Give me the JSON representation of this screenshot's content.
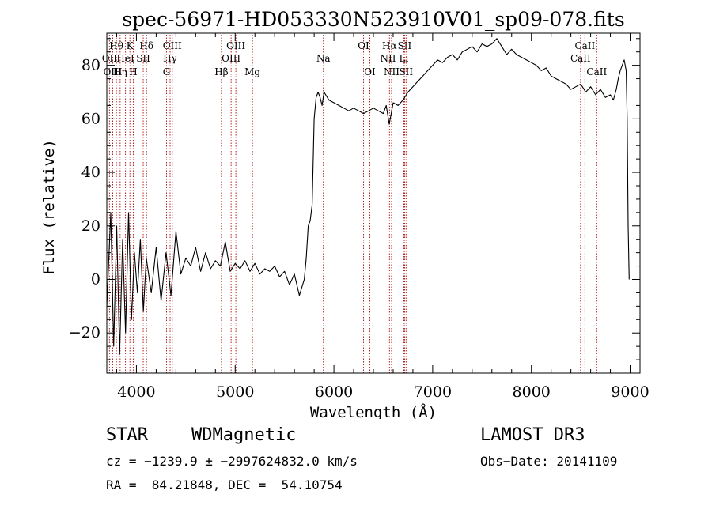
{
  "chart_data": {
    "type": "line",
    "title": "spec-56971-HD053330N523910V01_sp09-078.fits",
    "xlabel": "Wavelength (Å)",
    "ylabel": "Flux (relative)",
    "xlim": [
      3700,
      9100
    ],
    "ylim": [
      -35,
      92
    ],
    "xticks": [
      4000,
      5000,
      6000,
      7000,
      8000,
      9000
    ],
    "yticks": [
      -20,
      0,
      20,
      40,
      60,
      80
    ],
    "grid": false,
    "series": [
      {
        "color": "#000000",
        "x": [
          3700,
          3740,
          3770,
          3800,
          3830,
          3860,
          3890,
          3920,
          3950,
          3980,
          4010,
          4040,
          4070,
          4100,
          4150,
          4200,
          4250,
          4300,
          4350,
          4400,
          4450,
          4500,
          4550,
          4600,
          4650,
          4700,
          4750,
          4800,
          4850,
          4900,
          4950,
          5000,
          5050,
          5100,
          5150,
          5200,
          5250,
          5300,
          5350,
          5400,
          5450,
          5500,
          5550,
          5600,
          5650,
          5700,
          5720,
          5740,
          5760,
          5780,
          5800,
          5820,
          5840,
          5860,
          5880,
          5900,
          5950,
          6000,
          6050,
          6100,
          6150,
          6200,
          6250,
          6300,
          6350,
          6400,
          6450,
          6500,
          6530,
          6560,
          6600,
          6650,
          6700,
          6750,
          6800,
          6850,
          6900,
          6950,
          7000,
          7050,
          7100,
          7150,
          7200,
          7250,
          7300,
          7350,
          7400,
          7450,
          7500,
          7550,
          7600,
          7650,
          7700,
          7750,
          7800,
          7850,
          7900,
          7950,
          8000,
          8050,
          8100,
          8150,
          8200,
          8250,
          8300,
          8350,
          8400,
          8450,
          8500,
          8550,
          8600,
          8650,
          8700,
          8750,
          8800,
          8830,
          8860,
          8880,
          8900,
          8920,
          8940,
          8960,
          8970,
          8980,
          8990
        ],
        "y": [
          -10,
          25,
          -25,
          20,
          -28,
          15,
          -20,
          25,
          -15,
          10,
          -5,
          15,
          -12,
          8,
          -5,
          12,
          -8,
          10,
          -6,
          18,
          2,
          8,
          5,
          12,
          3,
          10,
          4,
          7,
          5,
          14,
          3,
          6,
          4,
          7,
          3,
          6,
          2,
          4,
          3,
          5,
          1,
          3,
          -2,
          2,
          -6,
          0,
          8,
          20,
          22,
          28,
          60,
          68,
          70,
          68,
          65,
          70,
          67,
          66,
          65,
          64,
          63,
          64,
          63,
          62,
          63,
          64,
          63,
          62,
          65,
          58,
          66,
          65,
          67,
          70,
          72,
          74,
          76,
          78,
          80,
          82,
          81,
          83,
          84,
          82,
          85,
          86,
          87,
          85,
          88,
          87,
          88,
          90,
          87,
          84,
          86,
          84,
          83,
          82,
          81,
          80,
          78,
          79,
          76,
          75,
          74,
          73,
          71,
          72,
          73,
          70,
          72,
          69,
          71,
          68,
          69,
          67,
          71,
          75,
          78,
          80,
          82,
          78,
          60,
          20,
          0
        ]
      }
    ],
    "line_labels": [
      {
        "label": "Hθ",
        "x": 3797,
        "row": 1
      },
      {
        "label": "OII",
        "x": 3727,
        "row": 2
      },
      {
        "label": "OIII",
        "x": 3760,
        "row": 3
      },
      {
        "label": "K",
        "x": 3934,
        "row": 1
      },
      {
        "label": "HeI",
        "x": 3889,
        "row": 2
      },
      {
        "label": "Hη",
        "x": 3835,
        "row": 3
      },
      {
        "label": "Hδ",
        "x": 4102,
        "row": 1
      },
      {
        "label": "SII",
        "x": 4069,
        "row": 2
      },
      {
        "label": "H",
        "x": 3968,
        "row": 3
      },
      {
        "label": "OIII",
        "x": 4363,
        "row": 1
      },
      {
        "label": "Hγ",
        "x": 4341,
        "row": 2
      },
      {
        "label": "G",
        "x": 4305,
        "row": 3
      },
      {
        "label": "OIII",
        "x": 5007,
        "row": 1
      },
      {
        "label": "OIII",
        "x": 4959,
        "row": 2
      },
      {
        "label": "Hβ",
        "x": 4861,
        "row": 3
      },
      {
        "label": "Mg",
        "x": 5175,
        "row": 3
      },
      {
        "label": "Na",
        "x": 5893,
        "row": 2
      },
      {
        "label": "OI",
        "x": 6300,
        "row": 1
      },
      {
        "label": "OI",
        "x": 6364,
        "row": 3
      },
      {
        "label": "Hα",
        "x": 6563,
        "row": 1
      },
      {
        "label": "SII",
        "x": 6716,
        "row": 1
      },
      {
        "label": "NII",
        "x": 6548,
        "row": 2
      },
      {
        "label": "Li",
        "x": 6708,
        "row": 2
      },
      {
        "label": "NII",
        "x": 6584,
        "row": 3
      },
      {
        "label": "SII",
        "x": 6731,
        "row": 3
      },
      {
        "label": "CaII",
        "x": 8542,
        "row": 1
      },
      {
        "label": "CaII",
        "x": 8498,
        "row": 2
      },
      {
        "label": "CaII",
        "x": 8662,
        "row": 3
      }
    ],
    "line_marker_color": "#b22222"
  },
  "info": {
    "class": "STAR",
    "subclass": "WDMagnetic",
    "survey": "LAMOST DR3",
    "cz": "cz = −1239.9 ± −2997624832.0 km/s",
    "obs_date": "Obs−Date: 20141109",
    "coords": "RA =  84.21848, DEC =  54.10754"
  }
}
